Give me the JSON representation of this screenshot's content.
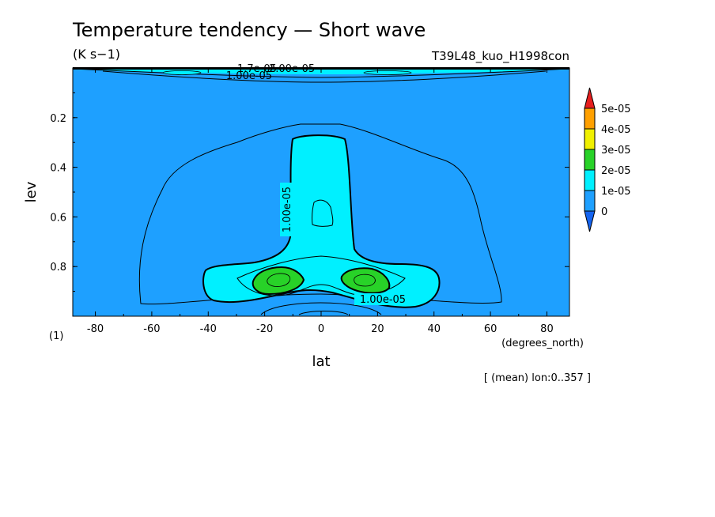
{
  "chart_data": {
    "type": "contour",
    "title": "Temperature tendency — Short wave",
    "units": "(K s−1)",
    "run_label": "T39L48_kuo_H1998con",
    "xlabel": "lat",
    "x_units": "(degrees_north)",
    "ylabel": "lev",
    "y_units": "(1)",
    "footnote": "[ (mean) lon:0..357 ]",
    "xlim": [
      -88,
      88
    ],
    "ylim": [
      1.0,
      0.0
    ],
    "y_inverted": true,
    "x_ticks": [
      "-80",
      "-60",
      "-40",
      "-20",
      "0",
      "20",
      "40",
      "60",
      "80"
    ],
    "y_ticks": [
      "0.2",
      "0.4",
      "0.6",
      "0.8"
    ],
    "contour_labels": [
      "1.00e-05",
      "1.00e-05",
      "1.00e-05"
    ],
    "top_labels": [
      "1.7e-05",
      "2.00e-05"
    ],
    "colorbar": {
      "labels": [
        "5e-05",
        "4e-05",
        "3e-05",
        "2e-05",
        "1e-05",
        "0"
      ],
      "colors": [
        "#1464f0",
        "#1ea0ff",
        "#00f0ff",
        "#28d228",
        "#f0f000",
        "#ffa000",
        "#e61e1e"
      ]
    },
    "regions": [
      {
        "range": "0 to 1e-05",
        "color": "#1ea0ff",
        "area": "background"
      },
      {
        "range": "1e-05 to 2e-05",
        "color": "#00f0ff",
        "area": "central column 0.27-0.93 lev and lower wings -40..40 lat near 0.8-0.93 lev"
      },
      {
        "range": "2e-05 to 3e-05",
        "color": "#28d228",
        "area": "two maxima near lat -15 and 15, lev 0.86"
      }
    ]
  }
}
